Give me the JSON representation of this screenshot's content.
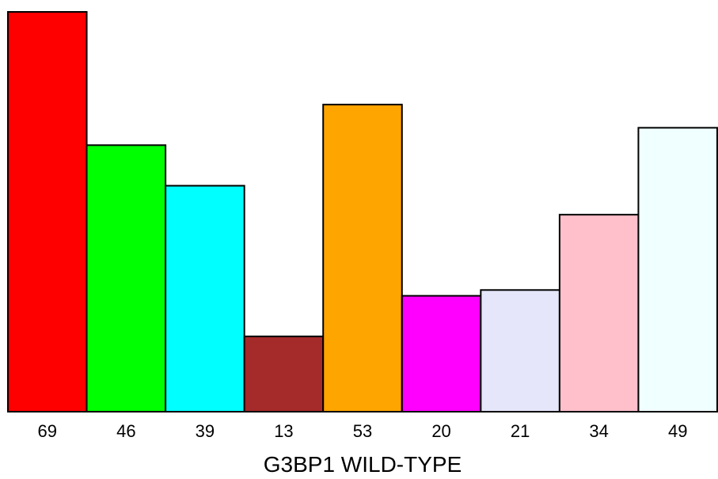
{
  "chart_data": {
    "type": "bar",
    "categories": [
      "69",
      "46",
      "39",
      "13",
      "53",
      "20",
      "21",
      "34",
      "49"
    ],
    "values": [
      69,
      46,
      39,
      13,
      53,
      20,
      21,
      34,
      49
    ],
    "colors": [
      "#ff0000",
      "#00ff00",
      "#00ffff",
      "#a52a2a",
      "#ffa500",
      "#ff00ff",
      "#e6e6fa",
      "#ffc0cb",
      "#f0ffff"
    ],
    "title": "",
    "xlabel": "G3BP1 WILD-TYPE",
    "ylabel": "",
    "ylim": [
      0,
      69
    ],
    "grid": false,
    "legend": "none"
  }
}
